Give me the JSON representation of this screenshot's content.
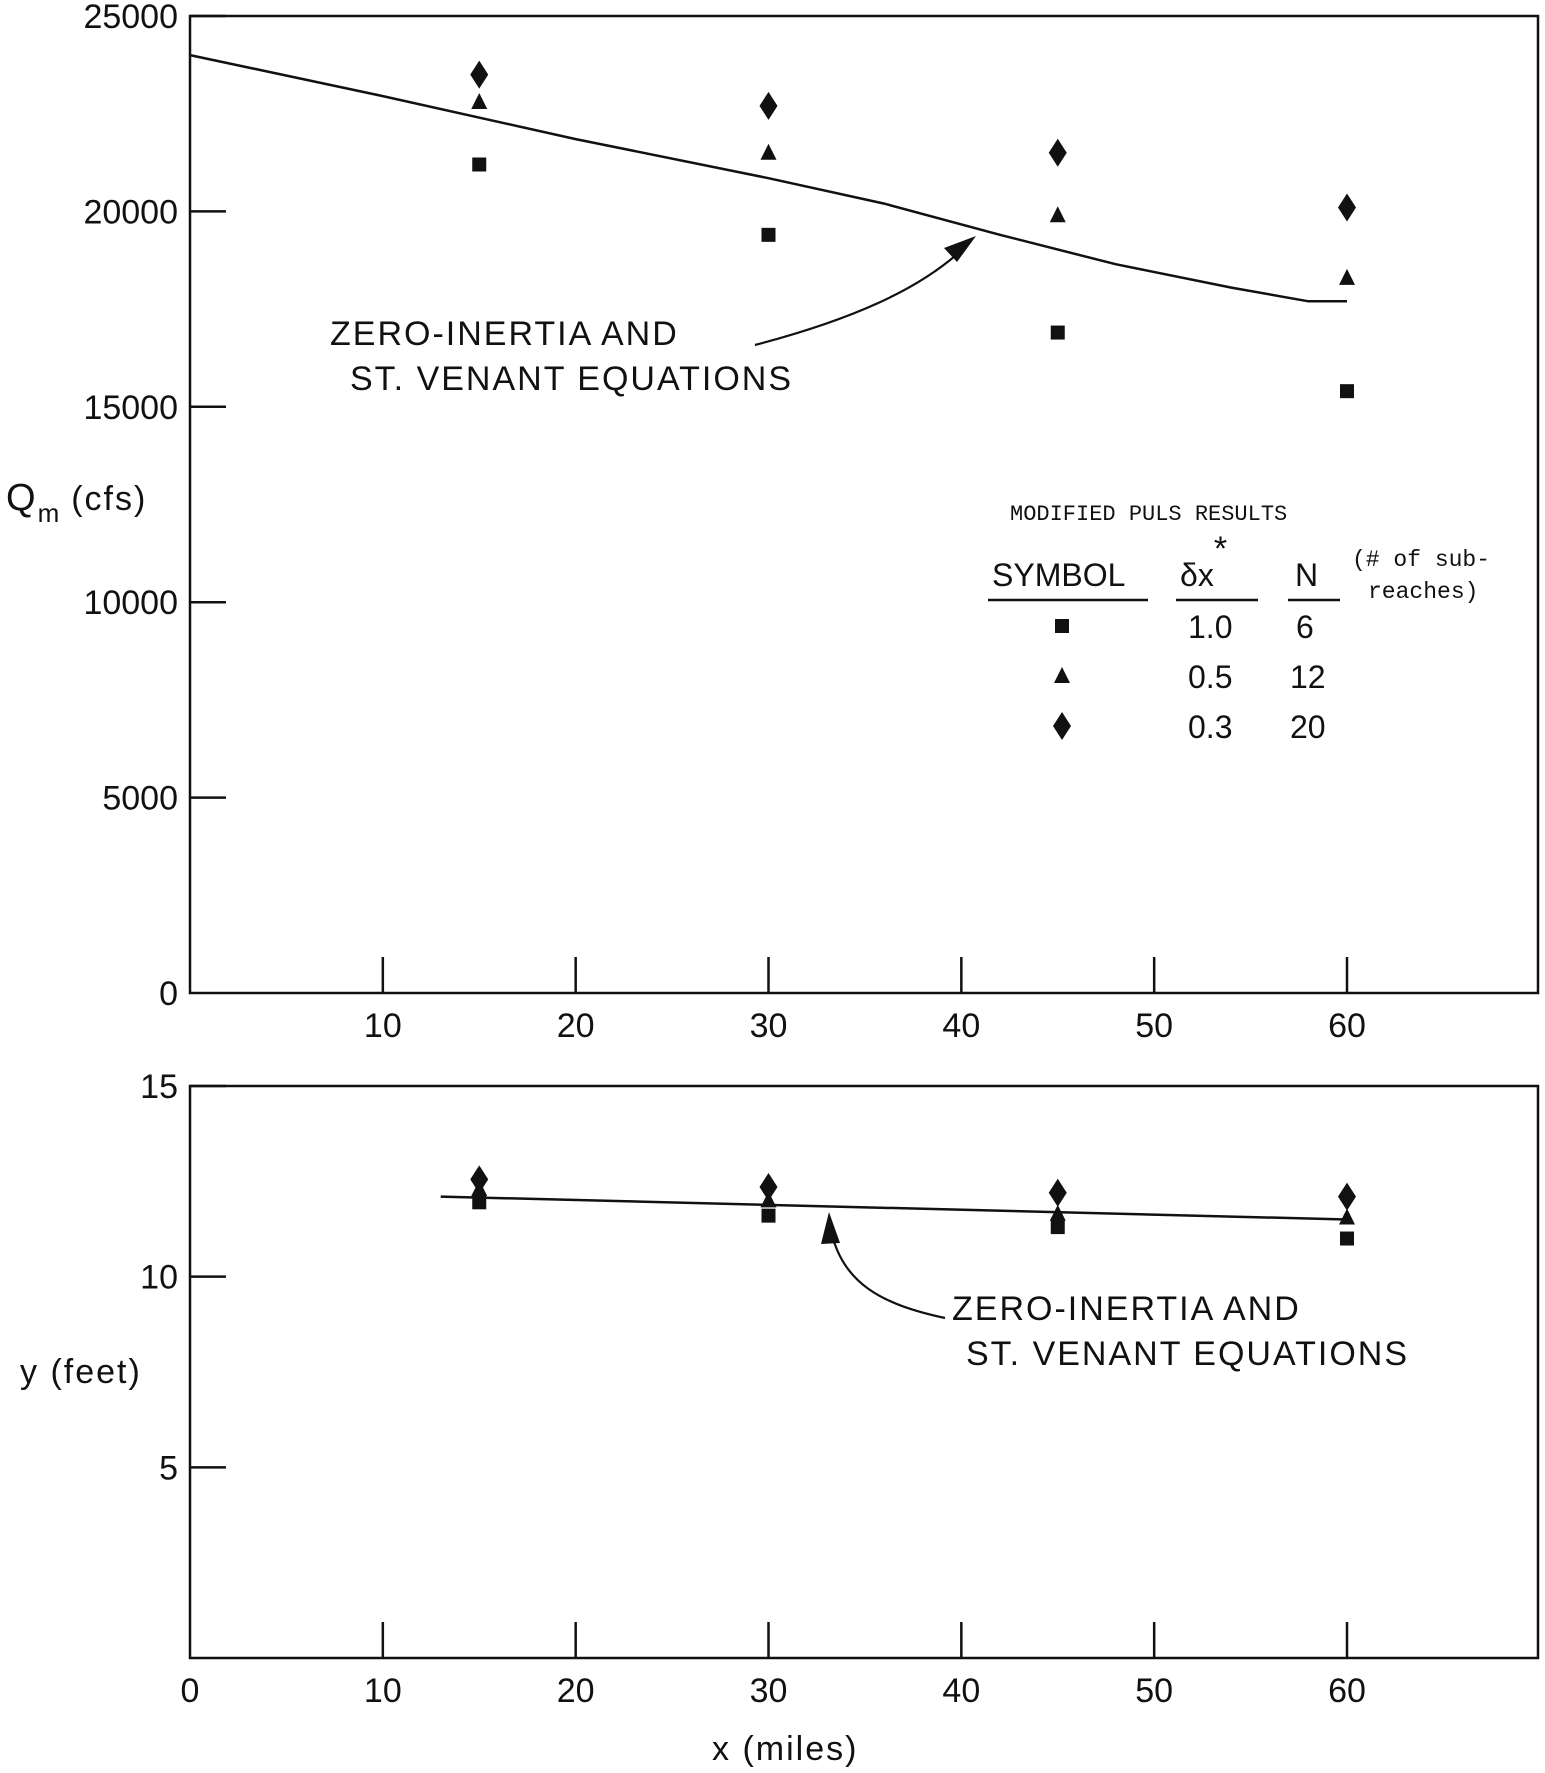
{
  "chart_data": [
    {
      "type": "scatter",
      "x": [
        15,
        30,
        45,
        60
      ],
      "ylim": [
        0,
        25000
      ],
      "xlim": [
        0,
        70
      ],
      "yticks": [
        0,
        5000,
        10000,
        15000,
        20000,
        25000
      ],
      "xticks": [
        10,
        20,
        30,
        40,
        50,
        60
      ],
      "ytick_labels": [
        "0",
        "5000",
        "10000",
        "15000",
        "20000",
        "25000"
      ],
      "xtick_labels": [
        "10",
        "20",
        "30",
        "40",
        "50",
        "60"
      ],
      "ylabel_main": "Q",
      "ylabel_sub": "m",
      "ylabel_unit": "(cfs)",
      "line": {
        "x": [
          0,
          10,
          20,
          30,
          36,
          42,
          48,
          54,
          58,
          60
        ],
        "y": [
          24000,
          22950,
          21850,
          20850,
          20200,
          19400,
          18650,
          18050,
          17700,
          17700
        ]
      },
      "series": [
        {
          "marker": "square",
          "values": [
            21200,
            19400,
            16900,
            15400
          ]
        },
        {
          "marker": "triangle",
          "values": [
            22800,
            21500,
            19900,
            18300
          ]
        },
        {
          "marker": "diamond",
          "values": [
            23500,
            22700,
            21500,
            20100
          ]
        }
      ],
      "annotation": {
        "line1": "ZERO-INERTIA AND",
        "line2": "ST. VENANT EQUATIONS",
        "points_to": {
          "x": 40.5,
          "y": 19500
        }
      },
      "legend": {
        "title": "MODIFIED PULS RESULTS",
        "headers": [
          "SYMBOL",
          "δx",
          "N"
        ],
        "header_star": "*",
        "note_line1": "(# of sub-",
        "note_line2": "reaches)",
        "rows": [
          {
            "marker": "square",
            "dx": "1.0",
            "n": "6"
          },
          {
            "marker": "triangle",
            "dx": "0.5",
            "n": "12"
          },
          {
            "marker": "diamond",
            "dx": "0.3",
            "n": "20"
          }
        ]
      }
    },
    {
      "type": "scatter",
      "x": [
        15,
        30,
        45,
        60
      ],
      "ylim": [
        0,
        15
      ],
      "xlim": [
        0,
        70
      ],
      "yticks": [
        5,
        10,
        15
      ],
      "xticks": [
        0,
        10,
        20,
        30,
        40,
        50,
        60
      ],
      "ytick_labels": [
        "5",
        "10",
        "15"
      ],
      "xtick_labels": [
        "0",
        "10",
        "20",
        "30",
        "40",
        "50",
        "60"
      ],
      "ylabel": "y (feet)",
      "xlabel": "x (miles)",
      "line": {
        "x": [
          13,
          60
        ],
        "y": [
          12.1,
          11.5
        ]
      },
      "series": [
        {
          "marker": "square",
          "values": [
            11.95,
            11.6,
            11.3,
            11.0
          ]
        },
        {
          "marker": "triangle",
          "values": [
            12.3,
            12.0,
            11.65,
            11.55
          ]
        },
        {
          "marker": "diamond",
          "values": [
            12.55,
            12.35,
            12.2,
            12.1
          ]
        }
      ],
      "annotation": {
        "line1": "ZERO-INERTIA AND",
        "line2": "ST. VENANT EQUATIONS",
        "points_to": {
          "x": 33.2,
          "y": 11.6
        }
      }
    }
  ]
}
